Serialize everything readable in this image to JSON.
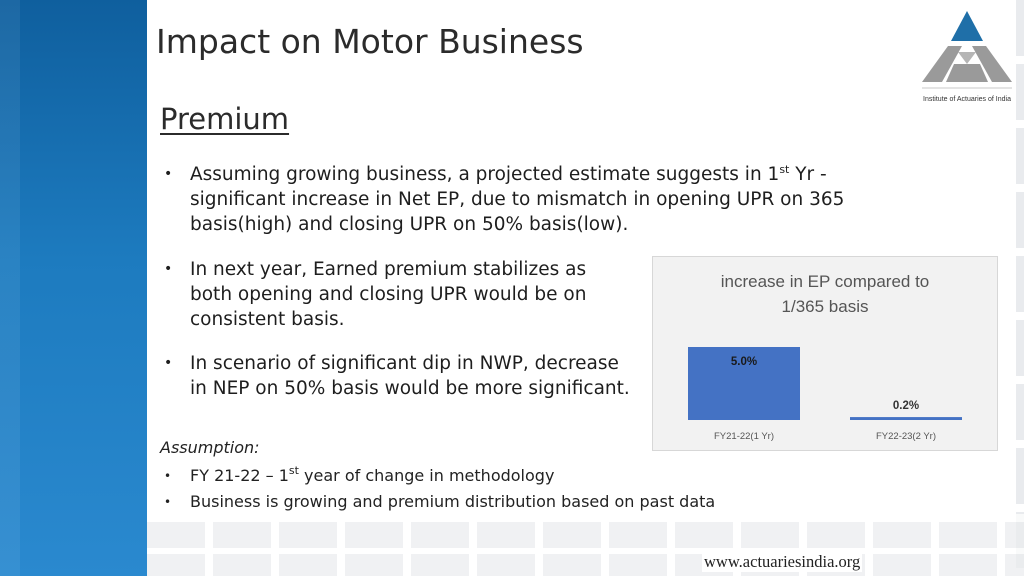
{
  "slide": {
    "title": "Impact on Motor Business",
    "subtitle": "Premium",
    "logo_caption": "Institute of Actuaries of India",
    "bullets": [
      {
        "pre": "Assuming growing business, a projected estimate suggests in 1",
        "sup": "st",
        "post": " Yr - significant increase in Net EP, due to mismatch in opening UPR on 365 basis(high) and closing UPR on 50% basis(low)."
      },
      {
        "text": "In next year, Earned premium stabilizes as both opening and closing UPR would be on consistent basis."
      },
      {
        "text": "In scenario of significant dip in NWP, decrease in NEP on 50% basis would be more significant."
      }
    ],
    "assumption_label": "Assumption:",
    "assumptions": [
      {
        "pre": "FY 21-22 – 1",
        "sup": "st",
        "post": " year of change in methodology"
      },
      {
        "text": "Business is growing and premium distribution based on past data"
      }
    ],
    "footer_url": "www.actuariesindia.org",
    "colors": {
      "bar": "#4472c4",
      "left_band": "#1d7bbf",
      "logo_blue": "#1f6fa8",
      "logo_gray": "#9a9a9a"
    }
  },
  "chart_data": {
    "type": "bar",
    "title": "increase in EP compared to 1/365 basis",
    "title_lines": [
      "increase in EP compared to",
      "1/365 basis"
    ],
    "categories": [
      "FY21-22(1 Yr)",
      "FY22-23(2 Yr)"
    ],
    "values": [
      5.0,
      0.2
    ],
    "data_labels": [
      "5.0%",
      "0.2%"
    ],
    "ylim": [
      0,
      5.0
    ],
    "grid": false,
    "legend": "none"
  }
}
